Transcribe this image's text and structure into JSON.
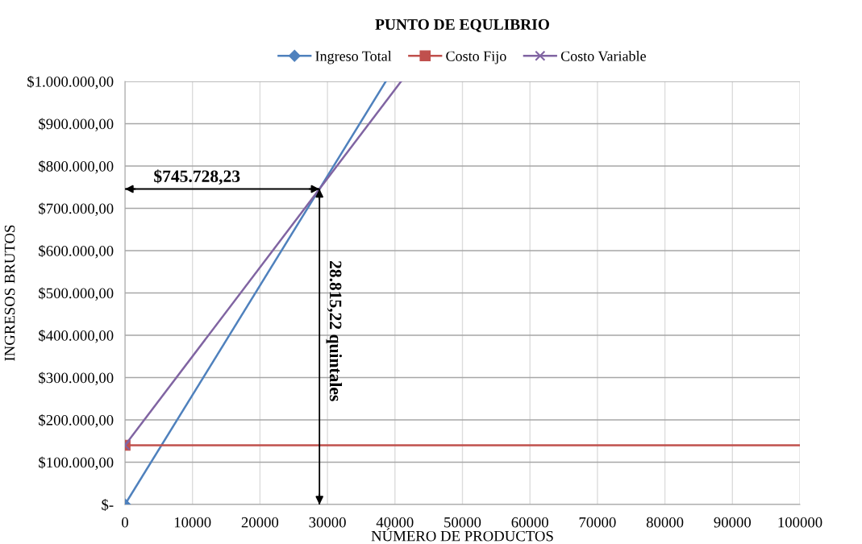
{
  "chart_data": {
    "type": "line",
    "title": "PUNTO DE EQULIBRIO",
    "xlabel": "NÚMERO DE PRODUCTOS",
    "ylabel": "INGRESOS BRUTOS",
    "series": [
      {
        "name": "Ingreso Total",
        "color": "#4f81bd",
        "marker": "diamond",
        "x": [
          0,
          38640
        ],
        "values": [
          0,
          1000000
        ]
      },
      {
        "name": "Costo Fijo",
        "color": "#c0504d",
        "marker": "square",
        "x": [
          0,
          100000
        ],
        "values": [
          140000,
          140000
        ]
      },
      {
        "name": "Costo Variable",
        "color": "#8064a2",
        "marker": "cross",
        "x": [
          0,
          40910
        ],
        "values": [
          140000,
          1000000
        ]
      }
    ],
    "xlim": [
      0,
      100000
    ],
    "xticks": [
      0,
      10000,
      20000,
      30000,
      40000,
      50000,
      60000,
      70000,
      80000,
      90000,
      100000
    ],
    "ylim": [
      0,
      1000000
    ],
    "yticks": [
      {
        "value": 0,
        "label": "$-"
      },
      {
        "value": 100000,
        "label": "$100.000,00"
      },
      {
        "value": 200000,
        "label": "$200.000,00"
      },
      {
        "value": 300000,
        "label": "$300.000,00"
      },
      {
        "value": 400000,
        "label": "$400.000,00"
      },
      {
        "value": 500000,
        "label": "$500.000,00"
      },
      {
        "value": 600000,
        "label": "$600.000,00"
      },
      {
        "value": 700000,
        "label": "$700.000,00"
      },
      {
        "value": 800000,
        "label": "$800.000,00"
      },
      {
        "value": 900000,
        "label": "$900.000,00"
      },
      {
        "value": 1000000,
        "label": "$1.000.000,00"
      }
    ],
    "grid": true,
    "legend": "top",
    "line_style": "solid",
    "ref_lines": [
      {
        "axis": "y",
        "value": 745728.23,
        "label": "$745.728,23",
        "color": "#000000"
      },
      {
        "axis": "x",
        "value": 28815.22,
        "label": "28.815,22 quintales",
        "color": "#000000"
      }
    ]
  }
}
